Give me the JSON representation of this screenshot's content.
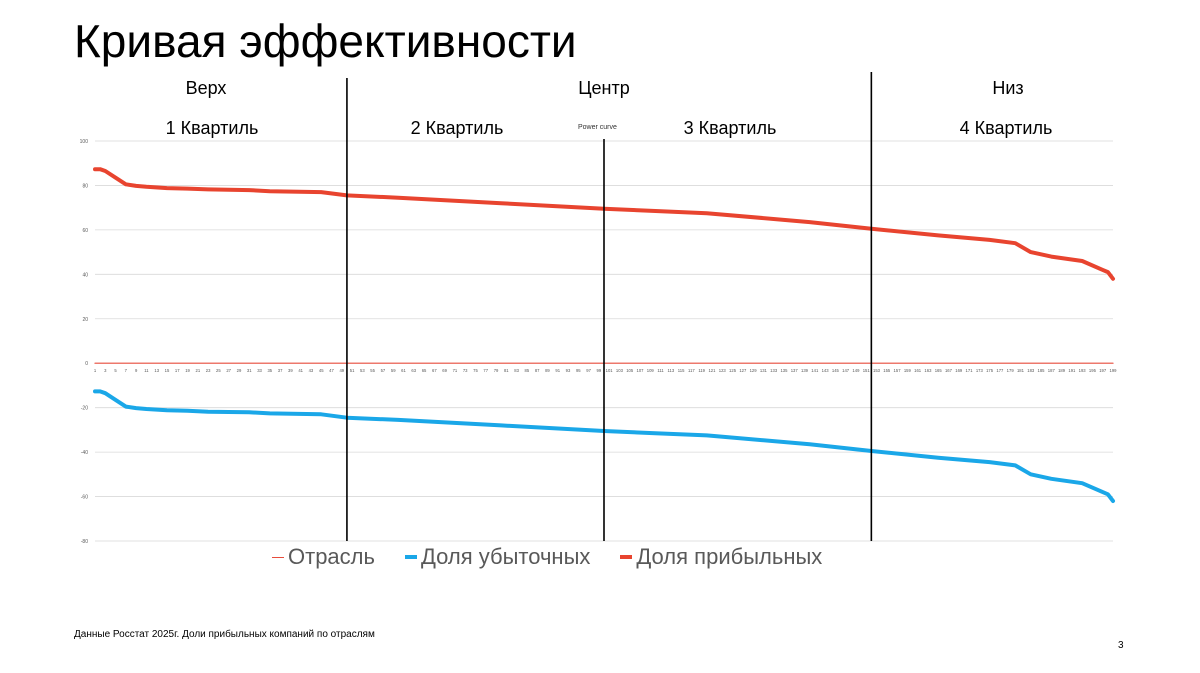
{
  "slide": {
    "title": "Кривая эффективности",
    "source": "Данные Росстат 2025г. Доли прибыльных компаний по отраслям",
    "page_number": "3"
  },
  "zones": {
    "top": "Верх",
    "center": "Центр",
    "bottom": "Низ"
  },
  "quartiles": [
    "1 Квартиль",
    "2 Квартиль",
    "3 Квартиль",
    "4 Квартиль"
  ],
  "chart_data": {
    "type": "line",
    "title": "Power curve",
    "x_range": [
      1,
      199
    ],
    "x_tick_step": 2,
    "ylim": [
      -80,
      100
    ],
    "y_ticks": [
      100,
      80,
      60,
      40,
      20,
      0,
      -20,
      -40,
      -60,
      -80
    ],
    "grid": true,
    "legend_position": "bottom",
    "divider_x": [
      50,
      100,
      152
    ],
    "series": [
      {
        "name": "Отрасль",
        "color": "#e74c3c",
        "style": "thin",
        "x": [
          1,
          199
        ],
        "values": [
          0,
          0
        ]
      },
      {
        "name": "Доля убыточных",
        "color": "#1aa7e8",
        "style": "thick",
        "x": [
          1,
          2,
          3,
          5,
          7,
          9,
          11,
          15,
          19,
          23,
          31,
          35,
          45,
          50,
          60,
          80,
          100,
          110,
          120,
          140,
          152,
          165,
          175,
          180,
          183,
          187,
          193,
          197,
          198,
          199
        ],
        "values": [
          -12.7,
          -12.7,
          -13.5,
          -16.5,
          -19.5,
          -20.2,
          -20.6,
          -21.2,
          -21.4,
          -21.8,
          -22.1,
          -22.6,
          -23.0,
          -24.5,
          -25.5,
          -28,
          -30.5,
          -31.5,
          -32.5,
          -36.5,
          -39.5,
          -42.5,
          -44.5,
          -46,
          -50,
          -52,
          -54,
          -58,
          -59,
          -62
        ]
      },
      {
        "name": "Доля прибыльных",
        "color": "#e8442f",
        "style": "thick",
        "x": [
          1,
          2,
          3,
          5,
          7,
          9,
          11,
          15,
          19,
          23,
          31,
          35,
          45,
          50,
          60,
          80,
          100,
          110,
          120,
          140,
          152,
          165,
          175,
          180,
          183,
          187,
          193,
          197,
          198,
          199
        ],
        "values": [
          87.3,
          87.3,
          86.5,
          83.5,
          80.5,
          79.8,
          79.4,
          78.8,
          78.6,
          78.2,
          77.9,
          77.4,
          77.0,
          75.5,
          74.5,
          72,
          69.5,
          68.5,
          67.5,
          63.5,
          60.5,
          57.5,
          55.5,
          54,
          50,
          48,
          46,
          42,
          41,
          38
        ]
      }
    ]
  }
}
